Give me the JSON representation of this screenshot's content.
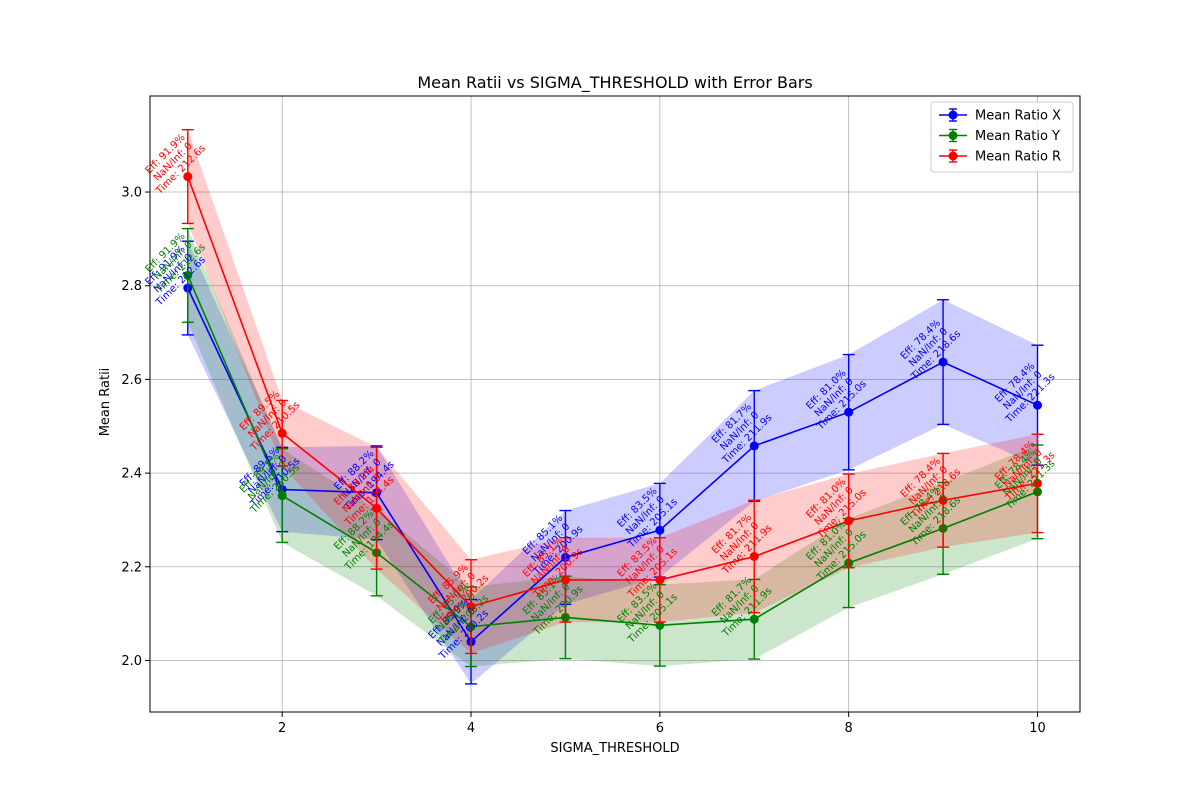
{
  "chart_data": {
    "type": "line",
    "title": "Mean Ratii vs SIGMA_THRESHOLD with Error Bars",
    "xlabel": "SIGMA_THRESHOLD",
    "ylabel": "Mean Ratii",
    "xlim": [
      0.6,
      10.45
    ],
    "ylim": [
      1.89,
      3.205
    ],
    "x_ticks": [
      2,
      4,
      6,
      8,
      10
    ],
    "y_ticks": [
      2.0,
      2.2,
      2.4,
      2.6,
      2.8,
      3.0
    ],
    "y_tick_labels": [
      "2.0",
      "2.2",
      "2.4",
      "2.6",
      "2.8",
      "3.0"
    ],
    "grid": true,
    "legend_position": "upper-right",
    "x": [
      1,
      2,
      3,
      4,
      5,
      6,
      7,
      8,
      9,
      10
    ],
    "series": [
      {
        "name": "Mean Ratio X",
        "color": "#0000ff",
        "values": [
          2.795,
          2.365,
          2.358,
          2.04,
          2.22,
          2.278,
          2.458,
          2.53,
          2.637,
          2.545
        ],
        "errors": [
          0.1,
          0.09,
          0.1,
          0.09,
          0.1,
          0.1,
          0.118,
          0.123,
          0.133,
          0.128
        ],
        "labels": [
          [
            "Eff: 91.9%",
            "NaN/Inf: 0",
            "Time: 212.6s"
          ],
          [
            "Eff: 89.5%",
            "NaN/Inf: 0",
            "Time: 210.5s"
          ],
          [
            "Eff: 88.2%",
            "NaN/Inf: 0",
            "Time: 194.4s"
          ],
          [
            "Eff: 85.9%",
            "NaN/Inf: 0",
            "Time: 200.2s"
          ],
          [
            "Eff: 85.1%",
            "NaN/Inf: 0",
            "Time: 200.9s"
          ],
          [
            "Eff: 83.5%",
            "NaN/Inf: 0",
            "Time: 205.1s"
          ],
          [
            "Eff: 81.7%",
            "NaN/Inf: 0",
            "Time: 211.9s"
          ],
          [
            "Eff: 81.0%",
            "NaN/Inf: 0",
            "Time: 215.0s"
          ],
          [
            "Eff: 78.4%",
            "NaN/Inf: 0",
            "Time: 218.6s"
          ],
          [
            "Eff: 78.4%",
            "NaN/Inf: 0",
            "Time: 221.3s"
          ]
        ]
      },
      {
        "name": "Mean Ratio Y",
        "color": "#008000",
        "values": [
          2.822,
          2.352,
          2.23,
          2.072,
          2.092,
          2.075,
          2.088,
          2.208,
          2.282,
          2.36
        ],
        "errors": [
          0.1,
          0.1,
          0.092,
          0.085,
          0.088,
          0.087,
          0.085,
          0.095,
          0.098,
          0.1
        ],
        "labels": [
          [
            "Eff: 91.9%",
            "NaN/Inf: 0",
            "Time: 212.6s"
          ],
          [
            "Eff: 89.5%",
            "NaN/Inf: 0",
            "Time: 210.5s"
          ],
          [
            "Eff: 88.2%",
            "NaN/Inf: 0",
            "Time: 194.4s"
          ],
          [
            "Eff: 85.9%",
            "NaN/Inf: 0",
            "Time: 200.2s"
          ],
          [
            "Eff: 85.1%",
            "NaN/Inf: 0",
            "Time: 200.9s"
          ],
          [
            "Eff: 83.5%",
            "NaN/Inf: 0",
            "Time: 205.1s"
          ],
          [
            "Eff: 81.7%",
            "NaN/Inf: 0",
            "Time: 211.9s"
          ],
          [
            "Eff: 81.0%",
            "NaN/Inf: 0",
            "Time: 215.0s"
          ],
          [
            "Eff: 78.4%",
            "NaN/Inf: 0",
            "Time: 218.6s"
          ],
          [
            "Eff: 78.4%",
            "NaN/Inf: 0",
            "Time: 221.3s"
          ]
        ]
      },
      {
        "name": "Mean Ratio R",
        "color": "#ff0000",
        "values": [
          3.033,
          2.485,
          2.325,
          2.115,
          2.172,
          2.172,
          2.222,
          2.298,
          2.342,
          2.378
        ],
        "errors": [
          0.1,
          0.07,
          0.13,
          0.1,
          0.09,
          0.09,
          0.12,
          0.1,
          0.1,
          0.105
        ],
        "labels": [
          [
            "Eff: 91.9%",
            "NaN/Inf: 0",
            "Time: 212.6s"
          ],
          [
            "Eff: 89.5%",
            "NaN/Inf: 0",
            "Time: 210.5s"
          ],
          [
            "Eff: 88.2%",
            "NaN/Inf: 0",
            "Time: 194.4s"
          ],
          [
            "Eff: 85.9%",
            "NaN/Inf: 0",
            "Time: 200.2s"
          ],
          [
            "Eff: 85.1%",
            "NaN/Inf: 0",
            "Time: 200.9s"
          ],
          [
            "Eff: 83.5%",
            "NaN/Inf: 0",
            "Time: 205.1s"
          ],
          [
            "Eff: 81.7%",
            "NaN/Inf: 0",
            "Time: 211.9s"
          ],
          [
            "Eff: 81.0%",
            "NaN/Inf: 0",
            "Time: 215.0s"
          ],
          [
            "Eff: 78.4%",
            "NaN/Inf: 0",
            "Time: 218.6s"
          ],
          [
            "Eff: 78.4%",
            "NaN/Inf: 0",
            "Time: 221.3s"
          ]
        ]
      }
    ]
  }
}
